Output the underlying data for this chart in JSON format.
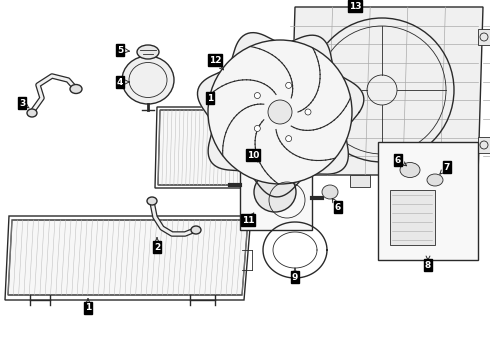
{
  "bg_color": "#ffffff",
  "line_color": "#2a2a2a",
  "label_bg": "#000000",
  "label_text_color": "#ffffff",
  "fig_width": 4.9,
  "fig_height": 3.6,
  "dpi": 100,
  "label_fontsize": 6.5
}
